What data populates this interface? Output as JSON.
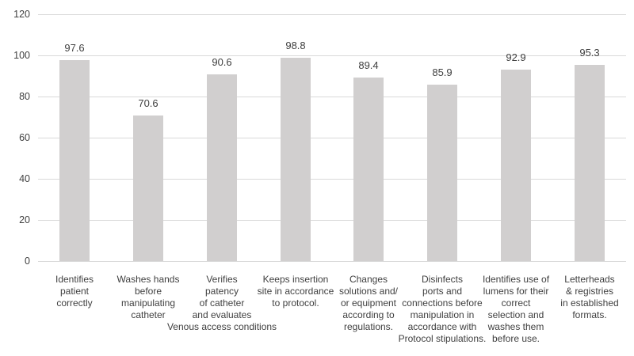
{
  "chart_data": {
    "type": "bar",
    "title": "",
    "xlabel": "",
    "ylabel": "",
    "categories": [
      "Identifies\npatient\ncorrectly",
      "Washes hands\nbefore\nmanipulating\ncatheter",
      "Verifies\npatency\nof catheter\nand evaluates\nVenous access conditions",
      "Keeps insertion\nsite in accordance\nto protocol.",
      "Changes\nsolutions and/\nor equipment\naccording to\nregulations.",
      "Disinfects\nports and\nconnections before\nmanipulation in\naccordance with\nProtocol stipulations.",
      "Identifies use of\nlumens for their\ncorrect\nselection and\nwashes them\nbefore use.",
      "Letterheads\n& registries\nin established\nformats."
    ],
    "values": [
      97.6,
      70.6,
      90.6,
      98.8,
      89.4,
      85.9,
      92.9,
      95.3
    ],
    "data_labels": [
      "97.6",
      "70.6",
      "90.6",
      "98.8",
      "89.4",
      "85.9",
      "92.9",
      "95.3"
    ],
    "ylim": [
      0,
      120
    ],
    "yticks": [
      0,
      20,
      40,
      60,
      80,
      100,
      120
    ],
    "grid": "horizontal",
    "legend": "none",
    "colors": {
      "bar": "#d1cfcf",
      "gridline": "#d9d9d9",
      "axis_text": "#404040",
      "data_label": "#404040",
      "background": "#ffffff"
    }
  }
}
